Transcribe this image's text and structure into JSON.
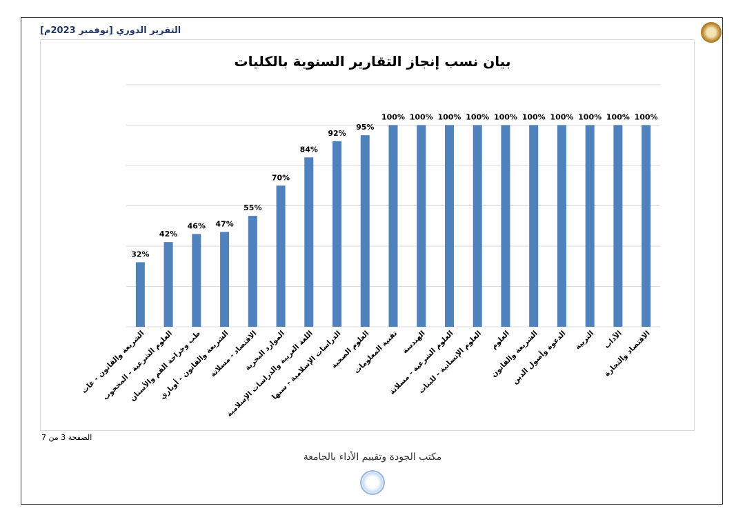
{
  "header": {
    "report_title": "التقرير الدوري [نوفمبر 2023م]"
  },
  "footer": {
    "page_label": "الصفحة 3 من 7",
    "office_name": "مكتب الجودة وتقييم الأداء بالجامعة"
  },
  "colors": {
    "bar": "#4f81bd",
    "grid": "#d9d9d9",
    "header_text": "#1f3864"
  },
  "chart_data": {
    "type": "bar",
    "title": "بيان نسب إنجاز التقارير السنوية بالكليات",
    "xlabel": "",
    "ylabel": "",
    "ylim": [
      0,
      120
    ],
    "grid": true,
    "y_gridlines": [
      0,
      20,
      40,
      60,
      80,
      100,
      120
    ],
    "value_suffix": "%",
    "categories": [
      "الشريعة والقانون - غات",
      "العلوم الشرعية - المحجوب",
      "طب وجراحة الفم والأسنان",
      "الشريعة والقانون - أوباري",
      "الاقتصاد - مسلاتة",
      "الموارد البحرية",
      "اللغة العربية والدراسات الإسلامية",
      "الدراسات الإسلامية - سبها",
      "العلوم الصحية",
      "تقنية المعلومات",
      "الهندسة",
      "العلوم الشرعية - مسلاتة",
      "العلوم الإنسانية - للبنات",
      "العلوم",
      "الشريعة والقانون",
      "الدعوة وأصول الدين",
      "التربية",
      "الآداب",
      "الاقتصاد والتجارة"
    ],
    "values": [
      32,
      42,
      46,
      47,
      55,
      70,
      84,
      92,
      95,
      100,
      100,
      100,
      100,
      100,
      100,
      100,
      100,
      100,
      100
    ],
    "data_labels": [
      "32%",
      "42%",
      "46%",
      "47%",
      "55%",
      "70%",
      "84%",
      "92%",
      "95%",
      "100%",
      "100%",
      "100%",
      "100%",
      "100%",
      "100%",
      "100%",
      "100%",
      "100%",
      "100%"
    ]
  }
}
